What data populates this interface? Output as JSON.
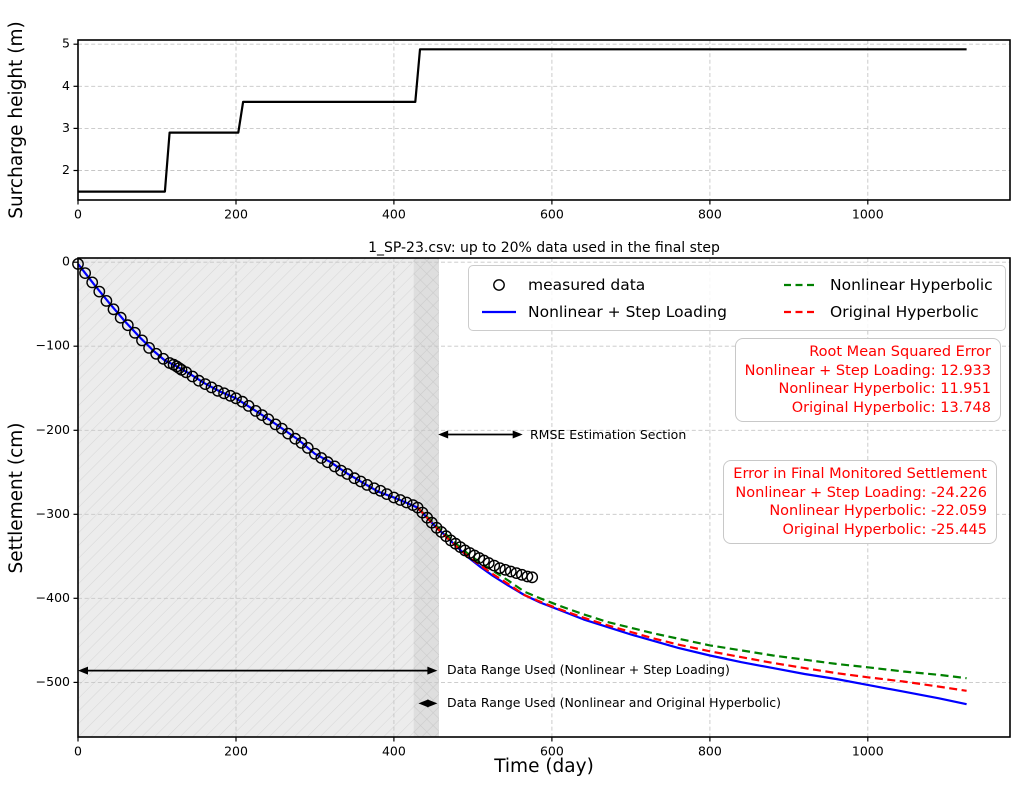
{
  "chart_data": [
    {
      "id": "surcharge",
      "type": "line",
      "title": "",
      "xlabel": "",
      "ylabel": "Surcharge height (m)",
      "xlim": [
        0,
        1180
      ],
      "ylim": [
        1.3,
        5.1
      ],
      "xticks": [
        0,
        200,
        400,
        600,
        800,
        1000
      ],
      "yticks": [
        2,
        3,
        4,
        5
      ],
      "grid": true,
      "series": [
        {
          "name": "surcharge-step-profile",
          "color": "#000000",
          "style": "solid",
          "width": 2.2,
          "x": [
            0,
            110,
            116,
            203,
            209,
            427,
            433,
            1125
          ],
          "y": [
            1.5,
            1.5,
            2.9,
            2.9,
            3.63,
            3.63,
            4.88,
            4.88
          ]
        }
      ]
    },
    {
      "id": "settlement",
      "type": "scatter+line",
      "title": "1_SP-23.csv: up to 20% data used in the final step",
      "xlabel": "Time (day)",
      "ylabel": "Settlement (cm)",
      "xlim": [
        0,
        1180
      ],
      "ylim": [
        -565,
        5
      ],
      "xticks": [
        0,
        200,
        400,
        600,
        800,
        1000
      ],
      "yticks": [
        0,
        -100,
        -200,
        -300,
        -400,
        -500
      ],
      "grid": true,
      "shaded_regions": [
        {
          "name": "step-loading-data-range",
          "x0": 0,
          "x1": 457,
          "hatch": "diag"
        },
        {
          "name": "hyperbolic-data-range",
          "x0": 425,
          "x1": 457,
          "hatch": "cross"
        }
      ],
      "measured": {
        "label": "measured data",
        "marker": "open-circle",
        "color": "#000000",
        "points": [
          [
            0,
            -2
          ],
          [
            9,
            -13
          ],
          [
            18,
            -24
          ],
          [
            27,
            -35
          ],
          [
            36,
            -46
          ],
          [
            45,
            -56
          ],
          [
            54,
            -66
          ],
          [
            63,
            -75
          ],
          [
            72,
            -84
          ],
          [
            81,
            -93
          ],
          [
            90,
            -102
          ],
          [
            99,
            -109
          ],
          [
            108,
            -115
          ],
          [
            116,
            -120
          ],
          [
            121,
            -122
          ],
          [
            125,
            -124
          ],
          [
            128,
            -126
          ],
          [
            131,
            -128
          ],
          [
            137,
            -131
          ],
          [
            145,
            -136
          ],
          [
            153,
            -141
          ],
          [
            161,
            -145
          ],
          [
            169,
            -149
          ],
          [
            177,
            -153
          ],
          [
            185,
            -156
          ],
          [
            193,
            -159
          ],
          [
            200,
            -162
          ],
          [
            208,
            -166
          ],
          [
            216,
            -171
          ],
          [
            225,
            -177
          ],
          [
            233,
            -182
          ],
          [
            241,
            -187
          ],
          [
            250,
            -193
          ],
          [
            258,
            -198
          ],
          [
            266,
            -204
          ],
          [
            275,
            -210
          ],
          [
            283,
            -215
          ],
          [
            291,
            -221
          ],
          [
            300,
            -228
          ],
          [
            308,
            -233
          ],
          [
            316,
            -238
          ],
          [
            325,
            -243
          ],
          [
            333,
            -248
          ],
          [
            341,
            -252
          ],
          [
            350,
            -257
          ],
          [
            358,
            -261
          ],
          [
            366,
            -265
          ],
          [
            375,
            -269
          ],
          [
            383,
            -272
          ],
          [
            391,
            -276
          ],
          [
            400,
            -280
          ],
          [
            408,
            -283
          ],
          [
            416,
            -286
          ],
          [
            424,
            -289
          ],
          [
            430,
            -292
          ],
          [
            436,
            -298
          ],
          [
            442,
            -304
          ],
          [
            448,
            -310
          ],
          [
            454,
            -316
          ],
          [
            460,
            -321
          ],
          [
            466,
            -326
          ],
          [
            472,
            -331
          ],
          [
            478,
            -335
          ],
          [
            484,
            -339
          ],
          [
            490,
            -343
          ],
          [
            496,
            -346
          ],
          [
            502,
            -349
          ],
          [
            508,
            -352
          ],
          [
            514,
            -355
          ],
          [
            520,
            -358
          ],
          [
            527,
            -361
          ],
          [
            534,
            -364
          ],
          [
            541,
            -366
          ],
          [
            548,
            -368
          ],
          [
            555,
            -370
          ],
          [
            562,
            -372
          ],
          [
            569,
            -374
          ],
          [
            575,
            -375
          ]
        ]
      },
      "series": [
        {
          "name": "Nonlinear + Step Loading",
          "color": "#0000ff",
          "style": "solid",
          "width": 2.2,
          "x": [
            0,
            20,
            40,
            60,
            80,
            95,
            110,
            125,
            140,
            160,
            180,
            200,
            220,
            240,
            260,
            280,
            300,
            320,
            340,
            360,
            380,
            400,
            415,
            430,
            442,
            454,
            466,
            480,
            495,
            510,
            525,
            545,
            565,
            585,
            610,
            640,
            670,
            700,
            730,
            760,
            800,
            840,
            880,
            920,
            960,
            1000,
            1045,
            1090,
            1125
          ],
          "y": [
            -2,
            -26,
            -49,
            -71,
            -91,
            -105,
            -117,
            -124,
            -132,
            -144,
            -154,
            -162,
            -174,
            -186,
            -199,
            -212,
            -228,
            -238,
            -251,
            -262,
            -273,
            -280,
            -286,
            -292,
            -304,
            -316,
            -326,
            -339,
            -352,
            -363,
            -373,
            -385,
            -396,
            -405,
            -414,
            -425,
            -434,
            -443,
            -451,
            -459,
            -468,
            -476,
            -483,
            -490,
            -496,
            -503,
            -511,
            -519,
            -526
          ]
        },
        {
          "name": "Nonlinear Hyperbolic",
          "color": "#008000",
          "style": "dashed",
          "width": 2.2,
          "x": [
            430,
            442,
            454,
            466,
            480,
            495,
            510,
            525,
            545,
            565,
            585,
            610,
            640,
            670,
            700,
            730,
            760,
            800,
            840,
            880,
            920,
            960,
            1000,
            1045,
            1090,
            1125
          ],
          "y": [
            -292,
            -303,
            -314,
            -324,
            -336,
            -348,
            -358,
            -367,
            -379,
            -392,
            -400,
            -409,
            -419,
            -428,
            -435,
            -442,
            -448,
            -456,
            -462,
            -468,
            -473,
            -478,
            -482,
            -487,
            -491,
            -495
          ]
        },
        {
          "name": "Original Hyperbolic",
          "color": "#ff0000",
          "style": "dashed",
          "width": 2.2,
          "x": [
            430,
            442,
            454,
            466,
            480,
            495,
            510,
            525,
            545,
            565,
            585,
            610,
            640,
            670,
            700,
            730,
            760,
            800,
            840,
            880,
            920,
            960,
            1000,
            1045,
            1090,
            1125
          ],
          "y": [
            -292,
            -304,
            -316,
            -327,
            -339,
            -351,
            -361,
            -371,
            -383,
            -396,
            -404,
            -413,
            -423,
            -432,
            -440,
            -448,
            -455,
            -463,
            -470,
            -477,
            -483,
            -489,
            -494,
            -499,
            -505,
            -510
          ]
        }
      ],
      "legend": {
        "entries": [
          {
            "label": "measured data",
            "glyph": "open-circle",
            "color": "#000000"
          },
          {
            "label": "Nonlinear + Step Loading",
            "glyph": "solid-line",
            "color": "#0000ff"
          },
          {
            "label": "Nonlinear Hyperbolic",
            "glyph": "dashed-line",
            "color": "#008000"
          },
          {
            "label": "Original Hyperbolic",
            "glyph": "dashed-line",
            "color": "#ff0000"
          }
        ]
      },
      "annotations": {
        "rmse_box": {
          "color": "#ff0000",
          "lines": [
            "Root Mean Squared Error",
            "Nonlinear + Step Loading: 12.933",
            "Nonlinear Hyperbolic: 11.951",
            "Original Hyperbolic: 13.748"
          ]
        },
        "error_box": {
          "color": "#ff0000",
          "lines": [
            "Error in Final Monitored Settlement",
            "Nonlinear + Step Loading: -24.226",
            "Nonlinear Hyperbolic: -22.059",
            "Original Hyperbolic: -25.445"
          ]
        },
        "arrows": [
          {
            "label": "RMSE Estimation Section",
            "x0": 456,
            "x1": 563,
            "y": -205
          },
          {
            "label": "Data Range Used (Nonlinear + Step Loading)",
            "x0": 0,
            "x1": 455,
            "y": -486
          },
          {
            "label": "Data Range Used (Nonlinear and Original Hyperbolic)",
            "x0": 431,
            "x1": 455,
            "y": -525
          }
        ]
      }
    }
  ]
}
